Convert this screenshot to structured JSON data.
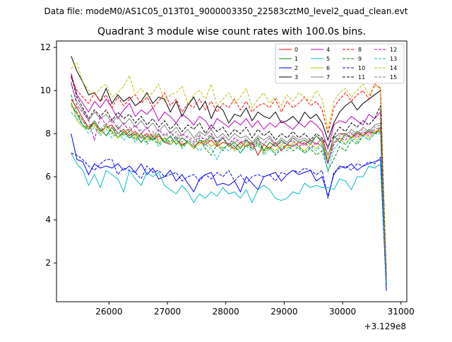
{
  "chart_data": {
    "type": "line",
    "suptitle": "Data file: modeM0/AS1C05_013T01_9000003350_22583cztM0_level2_quad_clean.evt",
    "title": "Quadrant 3 module wise count rates with 100.0s bins.",
    "xlabel": "",
    "ylabel": "",
    "x_offset_label": "+3.129e8",
    "xlim": [
      25100,
      31100
    ],
    "ylim": [
      0.2,
      12.3
    ],
    "xticks": [
      26000,
      27000,
      28000,
      29000,
      30000,
      31000
    ],
    "yticks": [
      2,
      4,
      6,
      8,
      10,
      12
    ],
    "legend_position": "upper-right",
    "grid": false,
    "x": [
      25350,
      25450,
      25550,
      25650,
      25750,
      25850,
      25950,
      26050,
      26150,
      26250,
      26350,
      26450,
      26550,
      26650,
      26750,
      26850,
      26950,
      27050,
      27150,
      27250,
      27350,
      27450,
      27550,
      27650,
      27750,
      27850,
      27950,
      28050,
      28150,
      28250,
      28350,
      28450,
      28550,
      28650,
      28750,
      28850,
      28950,
      29050,
      29150,
      29250,
      29350,
      29450,
      29550,
      29650,
      29750,
      29850,
      29950,
      30050,
      30150,
      30250,
      30350,
      30450,
      30550,
      30650,
      30700,
      30750
    ],
    "series": [
      {
        "name": "0",
        "color": "#ff0000",
        "dash": "solid",
        "values": [
          9.6,
          9.2,
          8.7,
          8.3,
          8.5,
          8.1,
          8.3,
          8.4,
          8.0,
          8.2,
          7.9,
          8.1,
          7.8,
          8.0,
          7.7,
          7.9,
          7.6,
          7.5,
          7.7,
          7.5,
          7.6,
          7.4,
          7.6,
          7.5,
          7.7,
          7.4,
          7.6,
          7.5,
          7.3,
          7.6,
          7.4,
          7.6,
          7.0,
          7.5,
          7.3,
          7.6,
          7.2,
          7.5,
          7.4,
          7.6,
          7.5,
          7.7,
          7.5,
          7.8,
          7.0,
          7.8,
          8.0,
          8.0,
          7.8,
          8.0,
          7.9,
          8.1,
          8.0,
          8.2,
          4.5,
          1.2
        ]
      },
      {
        "name": "1",
        "color": "#008000",
        "dash": "solid",
        "values": [
          9.4,
          8.9,
          8.4,
          8.2,
          8.6,
          8.2,
          7.9,
          8.3,
          7.8,
          8.1,
          7.8,
          8.0,
          7.6,
          7.9,
          7.7,
          8.0,
          7.6,
          7.9,
          7.5,
          7.8,
          7.6,
          7.3,
          7.7,
          7.6,
          7.9,
          7.5,
          7.8,
          7.4,
          7.6,
          7.3,
          7.7,
          7.5,
          7.8,
          7.2,
          7.6,
          7.4,
          7.7,
          7.5,
          7.8,
          7.6,
          7.7,
          7.5,
          7.9,
          7.6,
          6.6,
          7.9,
          7.6,
          8.0,
          7.8,
          8.1,
          7.9,
          8.2,
          8.0,
          8.3,
          4.4,
          1.1
        ]
      },
      {
        "name": "2",
        "color": "#0000ff",
        "dash": "solid",
        "values": [
          8.0,
          6.8,
          6.7,
          6.1,
          6.6,
          6.4,
          6.5,
          6.4,
          6.6,
          6.3,
          6.5,
          6.2,
          6.6,
          6.1,
          6.4,
          5.9,
          6.0,
          6.3,
          5.8,
          6.1,
          5.7,
          5.3,
          5.9,
          6.1,
          6.2,
          5.6,
          5.7,
          5.6,
          5.8,
          5.3,
          6.0,
          5.7,
          5.4,
          6.0,
          6.1,
          6.2,
          5.8,
          6.1,
          6.3,
          6.1,
          6.2,
          6.3,
          5.8,
          6.0,
          5.1,
          6.1,
          6.5,
          6.4,
          6.6,
          6.3,
          6.5,
          6.6,
          6.7,
          6.8,
          3.8,
          0.7
        ]
      },
      {
        "name": "3",
        "color": "#000000",
        "dash": "solid",
        "values": [
          11.6,
          10.9,
          10.4,
          9.8,
          9.9,
          9.5,
          10.1,
          9.4,
          9.8,
          9.5,
          9.7,
          9.3,
          9.5,
          9.9,
          9.4,
          9.7,
          9.6,
          9.0,
          9.5,
          8.8,
          9.3,
          9.7,
          9.1,
          9.5,
          8.7,
          9.3,
          9.1,
          8.5,
          8.9,
          8.8,
          9.2,
          8.6,
          9.0,
          8.8,
          8.7,
          9.0,
          8.5,
          8.6,
          8.8,
          8.5,
          9.0,
          8.7,
          8.9,
          8.5,
          7.7,
          8.5,
          9.0,
          9.3,
          9.5,
          9.1,
          9.4,
          9.6,
          9.8,
          10.0,
          5.5,
          1.5
        ]
      },
      {
        "name": "4",
        "color": "#bf00bf",
        "dash": "solid",
        "values": [
          10.8,
          9.8,
          9.4,
          9.0,
          9.5,
          9.2,
          9.6,
          9.2,
          8.7,
          9.1,
          9.4,
          8.8,
          9.1,
          8.9,
          9.2,
          8.6,
          9.0,
          8.8,
          8.5,
          8.9,
          8.7,
          8.4,
          8.8,
          8.6,
          8.2,
          8.7,
          8.5,
          8.3,
          8.6,
          8.4,
          8.7,
          8.3,
          8.6,
          8.2,
          8.5,
          8.3,
          8.6,
          8.4,
          8.2,
          8.5,
          8.3,
          8.6,
          8.4,
          8.1,
          7.3,
          8.4,
          8.6,
          8.5,
          8.8,
          8.6,
          8.4,
          8.9,
          8.7,
          9.0,
          5.0,
          1.4
        ]
      },
      {
        "name": "5",
        "color": "#00bfbf",
        "dash": "solid",
        "values": [
          7.1,
          6.6,
          6.3,
          5.6,
          6.1,
          5.5,
          6.3,
          6.1,
          5.9,
          5.3,
          6.3,
          5.9,
          5.6,
          6.2,
          6.0,
          6.2,
          5.6,
          5.4,
          5.2,
          5.6,
          5.3,
          4.8,
          5.2,
          5.0,
          5.3,
          5.1,
          5.5,
          5.2,
          5.3,
          5.0,
          5.4,
          4.8,
          5.4,
          5.6,
          5.4,
          5.0,
          4.9,
          5.0,
          5.3,
          5.2,
          5.7,
          5.5,
          5.6,
          5.5,
          5.5,
          5.4,
          5.9,
          5.8,
          5.4,
          6.0,
          6.0,
          6.5,
          6.4,
          6.6,
          3.8,
          1.0
        ]
      },
      {
        "name": "6",
        "color": "#bfbf00",
        "dash": "solid",
        "values": [
          9.5,
          8.6,
          8.3,
          8.2,
          8.4,
          8.0,
          8.3,
          8.1,
          7.8,
          8.0,
          8.2,
          7.8,
          8.0,
          7.7,
          8.0,
          7.6,
          7.8,
          7.5,
          7.7,
          7.4,
          7.6,
          7.3,
          7.5,
          7.7,
          7.4,
          7.6,
          7.3,
          7.5,
          7.2,
          7.4,
          7.6,
          7.3,
          7.5,
          7.1,
          7.4,
          7.2,
          7.5,
          7.3,
          7.6,
          7.4,
          7.2,
          7.5,
          7.3,
          7.6,
          6.8,
          7.6,
          7.8,
          7.5,
          7.9,
          7.7,
          8.0,
          7.8,
          8.1,
          8.2,
          4.4,
          1.2
        ]
      },
      {
        "name": "7",
        "color": "#808080",
        "dash": "solid",
        "values": [
          10.3,
          9.5,
          9.1,
          8.6,
          9.0,
          8.7,
          8.9,
          8.5,
          8.8,
          8.4,
          8.7,
          8.3,
          8.6,
          8.2,
          8.5,
          8.1,
          8.4,
          8.0,
          8.3,
          7.9,
          8.2,
          7.8,
          8.1,
          7.9,
          8.2,
          7.8,
          8.0,
          7.7,
          8.0,
          7.8,
          7.9,
          7.6,
          7.9,
          7.7,
          7.9,
          7.5,
          7.8,
          7.6,
          7.9,
          7.7,
          7.8,
          7.6,
          7.9,
          7.7,
          7.0,
          7.8,
          8.0,
          7.9,
          8.2,
          8.0,
          8.3,
          8.1,
          8.4,
          8.5,
          4.6,
          1.3
        ]
      },
      {
        "name": "8",
        "color": "#ff0000",
        "dash": "dashed",
        "values": [
          10.6,
          10.0,
          9.7,
          9.4,
          9.9,
          9.5,
          9.8,
          9.2,
          9.7,
          9.3,
          9.6,
          9.8,
          9.4,
          9.7,
          9.2,
          9.5,
          9.9,
          9.3,
          9.6,
          9.0,
          9.4,
          9.2,
          9.6,
          9.1,
          9.5,
          9.0,
          9.4,
          9.2,
          9.6,
          9.1,
          9.5,
          9.0,
          9.3,
          9.4,
          9.2,
          9.6,
          9.0,
          9.5,
          9.2,
          9.4,
          9.7,
          9.3,
          9.5,
          9.1,
          8.0,
          9.2,
          9.6,
          9.9,
          9.5,
          9.8,
          10.0,
          9.6,
          10.3,
          10.1,
          5.5,
          1.5
        ]
      },
      {
        "name": "9",
        "color": "#008000",
        "dash": "dashed",
        "values": [
          9.8,
          9.0,
          8.6,
          8.2,
          8.5,
          8.1,
          8.4,
          8.0,
          8.3,
          7.9,
          8.1,
          7.7,
          8.0,
          7.6,
          7.9,
          7.5,
          7.8,
          7.6,
          7.9,
          7.4,
          7.7,
          7.5,
          7.8,
          7.3,
          7.0,
          7.5,
          7.2,
          7.6,
          7.4,
          7.1,
          7.5,
          7.3,
          7.6,
          7.2,
          7.4,
          7.0,
          7.3,
          7.5,
          7.2,
          7.4,
          7.1,
          7.3,
          7.0,
          7.2,
          6.3,
          6.8,
          7.4,
          7.2,
          7.7,
          7.5,
          7.9,
          7.7,
          8.0,
          8.1,
          4.3,
          1.1
        ]
      },
      {
        "name": "10",
        "color": "#0000ff",
        "dash": "dashed",
        "values": [
          7.1,
          7.0,
          6.8,
          6.5,
          6.3,
          6.6,
          6.8,
          6.8,
          6.1,
          6.4,
          6.3,
          6.2,
          5.9,
          6.5,
          6.2,
          6.3,
          6.0,
          6.1,
          6.2,
          5.8,
          6.0,
          6.1,
          5.8,
          6.1,
          5.9,
          6.2,
          6.0,
          6.3,
          5.8,
          6.1,
          5.7,
          6.0,
          6.1,
          6.0,
          6.1,
          5.8,
          6.2,
          6.1,
          6.3,
          6.2,
          6.4,
          6.3,
          6.1,
          6.3,
          5.0,
          6.2,
          6.4,
          6.5,
          6.3,
          6.6,
          6.5,
          6.7,
          6.6,
          6.9,
          3.8,
          0.8
        ]
      },
      {
        "name": "11",
        "color": "#000000",
        "dash": "dashed",
        "values": [
          10.7,
          9.7,
          9.2,
          8.7,
          9.1,
          8.8,
          9.1,
          8.6,
          9.0,
          8.7,
          8.9,
          8.5,
          8.8,
          8.4,
          8.7,
          8.3,
          8.6,
          8.2,
          8.5,
          8.1,
          8.4,
          8.2,
          8.5,
          8.0,
          8.4,
          8.1,
          8.3,
          7.9,
          8.2,
          8.0,
          8.3,
          7.8,
          8.2,
          7.9,
          8.1,
          7.7,
          8.0,
          7.8,
          8.1,
          7.8,
          8.0,
          7.7,
          8.0,
          7.8,
          7.4,
          7.9,
          8.3,
          8.1,
          8.5,
          8.3,
          8.6,
          8.4,
          8.7,
          9.3,
          5.1,
          1.4
        ]
      },
      {
        "name": "12",
        "color": "#bf00bf",
        "dash": "dashed",
        "values": [
          10.4,
          9.3,
          9.0,
          8.6,
          7.7,
          8.8,
          8.4,
          8.7,
          8.2,
          8.5,
          8.1,
          8.4,
          8.0,
          8.3,
          7.8,
          8.2,
          7.9,
          8.1,
          7.7,
          8.0,
          7.8,
          7.6,
          7.9,
          7.7,
          8.0,
          7.6,
          7.8,
          7.5,
          7.8,
          7.6,
          7.7,
          7.4,
          7.7,
          7.5,
          7.8,
          7.4,
          7.6,
          7.5,
          7.7,
          7.4,
          7.6,
          7.3,
          7.6,
          7.4,
          6.6,
          7.5,
          7.8,
          7.7,
          8.0,
          7.8,
          8.1,
          7.9,
          8.2,
          8.3,
          4.5,
          1.2
        ]
      },
      {
        "name": "13",
        "color": "#00bfbf",
        "dash": "dashed",
        "values": [
          9.0,
          8.7,
          8.4,
          8.0,
          8.3,
          7.9,
          8.2,
          7.8,
          8.1,
          7.7,
          8.0,
          7.6,
          7.9,
          7.5,
          7.8,
          7.4,
          7.7,
          7.5,
          7.8,
          7.3,
          7.6,
          7.4,
          7.2,
          7.5,
          7.3,
          6.8,
          7.4,
          7.2,
          7.5,
          7.1,
          7.4,
          7.2,
          7.5,
          7.0,
          7.3,
          7.1,
          7.4,
          7.2,
          7.5,
          7.3,
          7.1,
          7.4,
          7.2,
          7.5,
          6.2,
          7.3,
          7.6,
          7.5,
          7.8,
          7.6,
          7.9,
          7.7,
          8.0,
          8.0,
          4.3,
          1.1
        ]
      },
      {
        "name": "14",
        "color": "#bfbf00",
        "dash": "dashed",
        "values": [
          11.0,
          11.3,
          10.4,
          10.0,
          9.8,
          10.1,
          10.3,
          9.7,
          9.9,
          10.2,
          10.7,
          9.8,
          10.1,
          9.7,
          9.9,
          10.3,
          9.5,
          9.8,
          9.9,
          10.2,
          9.4,
          9.8,
          10.0,
          9.6,
          10.3,
          9.3,
          9.6,
          9.9,
          9.4,
          9.7,
          10.1,
          9.2,
          9.6,
          9.9,
          9.4,
          9.7,
          9.3,
          9.8,
          9.5,
          9.9,
          9.7,
          9.5,
          10.0,
          9.6,
          8.2,
          9.5,
          9.9,
          10.1,
          9.7,
          10.0,
          10.3,
          9.8,
          10.2,
          10.2,
          5.6,
          1.6
        ]
      },
      {
        "name": "15",
        "color": "#808080",
        "dash": "dashed",
        "values": [
          9.3,
          8.9,
          8.6,
          8.3,
          8.6,
          8.2,
          8.5,
          8.1,
          8.4,
          8.0,
          8.3,
          7.9,
          8.2,
          7.8,
          8.1,
          7.7,
          8.0,
          7.8,
          8.1,
          7.6,
          7.9,
          7.7,
          8.0,
          7.5,
          7.8,
          7.6,
          7.9,
          7.4,
          7.7,
          7.5,
          7.8,
          7.3,
          7.7,
          7.5,
          7.8,
          7.4,
          7.6,
          7.5,
          7.8,
          7.6,
          7.4,
          7.7,
          7.5,
          7.8,
          6.7,
          7.6,
          7.9,
          7.8,
          8.1,
          7.9,
          8.2,
          8.0,
          8.3,
          8.4,
          4.5,
          1.2
        ]
      }
    ]
  }
}
